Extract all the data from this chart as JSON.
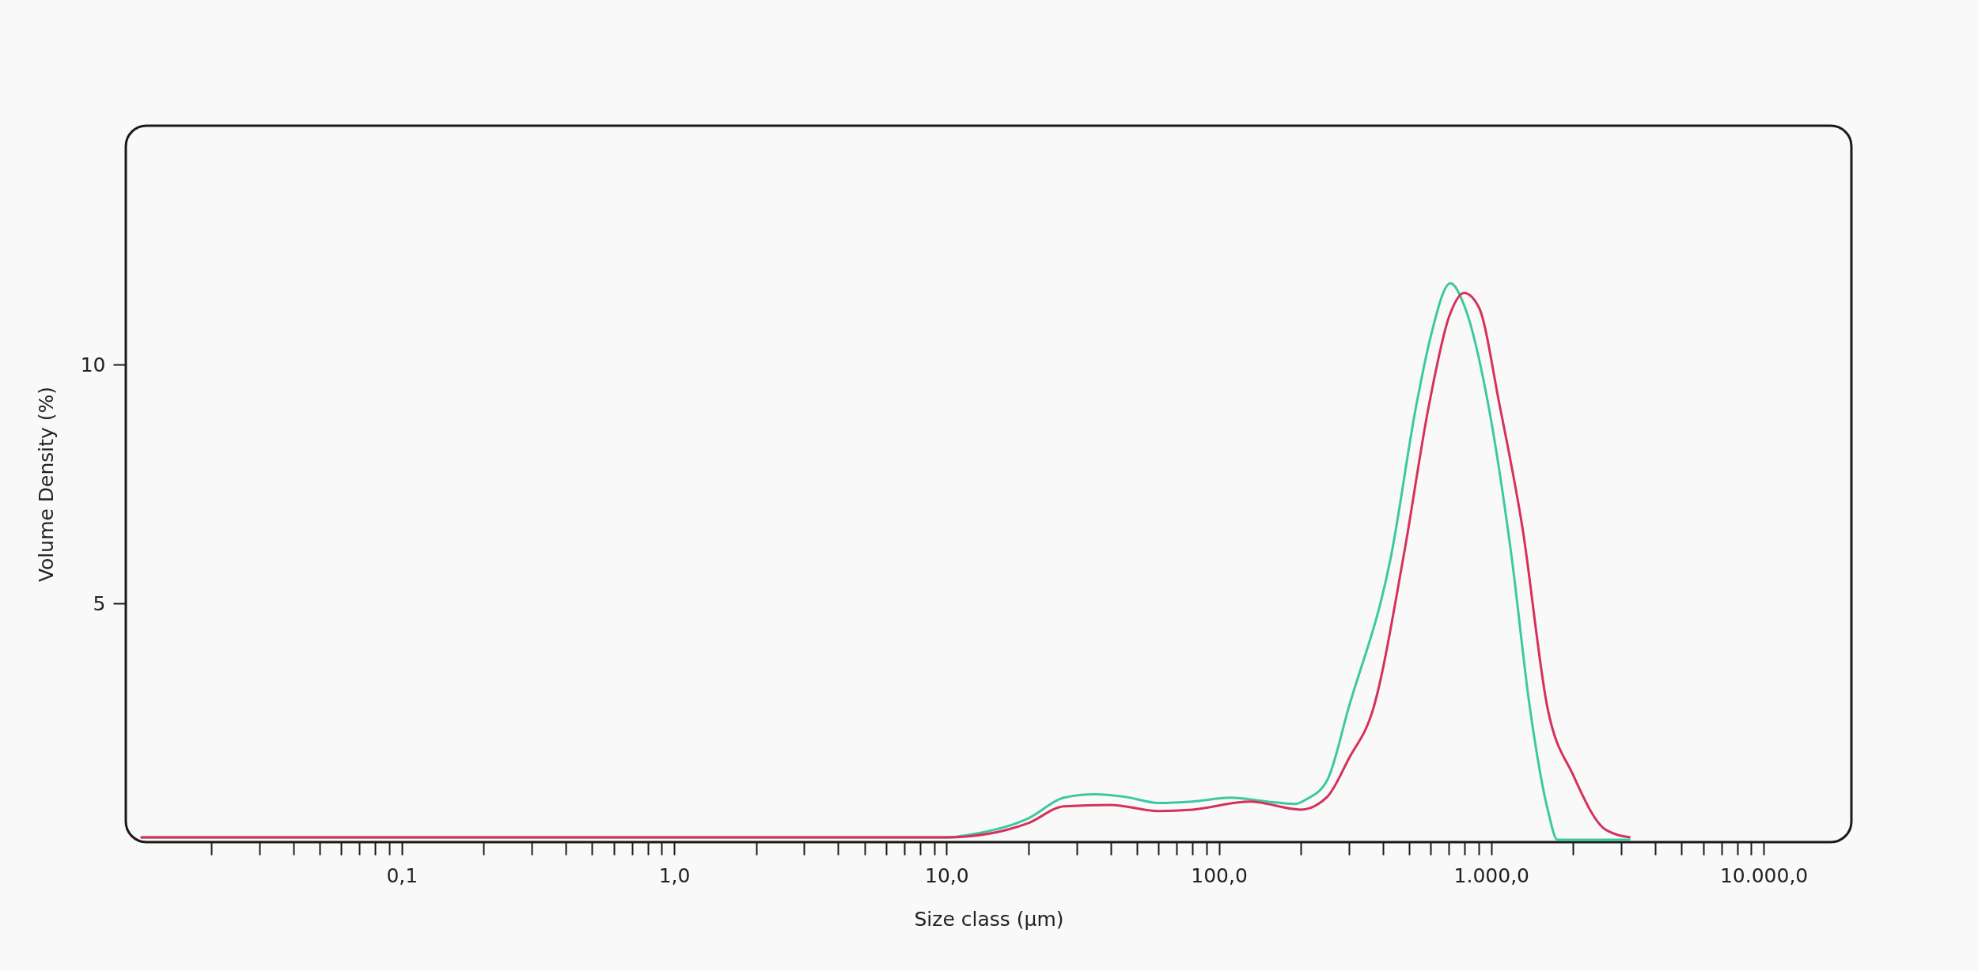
{
  "chart_data": {
    "type": "line",
    "xlabel": "Size class (µm)",
    "ylabel": "Volume Density (%)",
    "log": "x",
    "xlim": [
      0.0097,
      21000
    ],
    "ylim": [
      0,
      15
    ],
    "yticks": [
      5,
      10
    ],
    "xticks": [
      {
        "value": 0.02,
        "label": null
      },
      {
        "value": 0.03,
        "label": null
      },
      {
        "value": 0.04,
        "label": null
      },
      {
        "value": 0.05,
        "label": null
      },
      {
        "value": 0.06,
        "label": null
      },
      {
        "value": 0.07,
        "label": null
      },
      {
        "value": 0.08,
        "label": null
      },
      {
        "value": 0.09,
        "label": null
      },
      {
        "value": 0.1,
        "label": "0,1"
      },
      {
        "value": 0.2,
        "label": null
      },
      {
        "value": 0.3,
        "label": null
      },
      {
        "value": 0.4,
        "label": null
      },
      {
        "value": 0.5,
        "label": null
      },
      {
        "value": 0.6,
        "label": null
      },
      {
        "value": 0.7,
        "label": null
      },
      {
        "value": 0.8,
        "label": null
      },
      {
        "value": 0.9,
        "label": null
      },
      {
        "value": 1,
        "label": "1,0"
      },
      {
        "value": 2,
        "label": null
      },
      {
        "value": 3,
        "label": null
      },
      {
        "value": 4,
        "label": null
      },
      {
        "value": 5,
        "label": null
      },
      {
        "value": 6,
        "label": null
      },
      {
        "value": 7,
        "label": null
      },
      {
        "value": 8,
        "label": null
      },
      {
        "value": 9,
        "label": null
      },
      {
        "value": 10,
        "label": "10,0"
      },
      {
        "value": 20,
        "label": null
      },
      {
        "value": 30,
        "label": null
      },
      {
        "value": 40,
        "label": null
      },
      {
        "value": 50,
        "label": null
      },
      {
        "value": 60,
        "label": null
      },
      {
        "value": 70,
        "label": null
      },
      {
        "value": 80,
        "label": null
      },
      {
        "value": 90,
        "label": null
      },
      {
        "value": 100,
        "label": "100,0"
      },
      {
        "value": 200,
        "label": null
      },
      {
        "value": 300,
        "label": null
      },
      {
        "value": 400,
        "label": null
      },
      {
        "value": 500,
        "label": null
      },
      {
        "value": 600,
        "label": null
      },
      {
        "value": 700,
        "label": null
      },
      {
        "value": 800,
        "label": null
      },
      {
        "value": 900,
        "label": null
      },
      {
        "value": 1000,
        "label": "1.000,0"
      },
      {
        "value": 2000,
        "label": null
      },
      {
        "value": 3000,
        "label": null
      },
      {
        "value": 4000,
        "label": null
      },
      {
        "value": 5000,
        "label": null
      },
      {
        "value": 6000,
        "label": null
      },
      {
        "value": 7000,
        "label": null
      },
      {
        "value": 8000,
        "label": null
      },
      {
        "value": 9000,
        "label": null
      },
      {
        "value": 10000,
        "label": "10.000,0"
      }
    ],
    "grid": false,
    "legend": false,
    "marker": "none",
    "line_style": "solid",
    "series": [
      {
        "color": "#3cc9a0",
        "x": [
          0.011,
          1,
          10,
          12,
          20,
          27,
          35,
          45,
          60,
          80,
          110,
          150,
          190,
          210,
          250,
          299,
          429,
          531,
          600,
          708,
          800,
          975,
          1186,
          1387,
          1610,
          1750,
          2200,
          3240
        ],
        "values": [
          0.1,
          0.1,
          0.1,
          0.15,
          0.5,
          0.93,
          1.0,
          0.95,
          0.82,
          0.85,
          0.93,
          0.85,
          0.8,
          0.9,
          1.3,
          2.8,
          6.0,
          9.16,
          10.6,
          11.7,
          11.2,
          9.16,
          6.0,
          2.8,
          0.69,
          0.05,
          0.05,
          0.05
        ]
      },
      {
        "color": "#d6315a",
        "x": [
          0.011,
          1,
          10,
          12,
          20,
          27,
          40,
          60,
          80,
          130,
          200,
          250,
          300,
          369,
          477,
          591,
          700,
          795,
          900,
          1072,
          1300,
          1610,
          2000,
          2630,
          3240
        ],
        "values": [
          0.1,
          0.1,
          0.1,
          0.12,
          0.4,
          0.75,
          0.78,
          0.65,
          0.68,
          0.85,
          0.68,
          0.95,
          1.75,
          2.8,
          6.0,
          9.16,
          11.0,
          11.5,
          11.2,
          9.16,
          6.6,
          2.8,
          1.4,
          0.26,
          0.1
        ]
      }
    ]
  }
}
